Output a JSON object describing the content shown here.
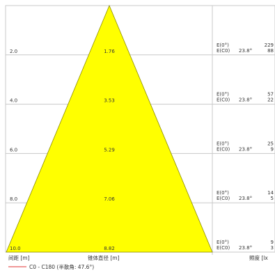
{
  "chart_data": {
    "type": "area",
    "title": "",
    "xlabel": "锥体直径 [m]",
    "ylabel": "间距 [m]",
    "right_label": "照度 [lx",
    "legend": {
      "text": "C0 - C180 (半散角: 47.6°)",
      "color": "#e03030"
    },
    "fill_color": "#ffff00",
    "line_color": "#8a8a00",
    "angle": "23.8°",
    "distance_range": [
      0,
      10.0
    ],
    "rows": [
      {
        "distance": "2.0",
        "diameter": "1.76",
        "e1_label": "E(0°)",
        "e2_label": "E(C0)",
        "angle": "23.8°",
        "e1": "229",
        "e2": "88"
      },
      {
        "distance": "4.0",
        "diameter": "3.53",
        "e1_label": "E(0°)",
        "e2_label": "E(C0)",
        "angle": "23.8°",
        "e1": "57",
        "e2": "22"
      },
      {
        "distance": "6.0",
        "diameter": "5.29",
        "e1_label": "E(0°)",
        "e2_label": "E(C0)",
        "angle": "23.8°",
        "e1": "25",
        "e2": "9"
      },
      {
        "distance": "8.0",
        "diameter": "7.06",
        "e1_label": "E(0°)",
        "e2_label": "E(C0)",
        "angle": "23.8°",
        "e1": "14",
        "e2": "5"
      },
      {
        "distance": "10.0",
        "diameter": "8.82",
        "e1_label": "E(0°)",
        "e2_label": "E(C0)",
        "angle": "23.8°",
        "e1": "9",
        "e2": "3"
      }
    ]
  }
}
